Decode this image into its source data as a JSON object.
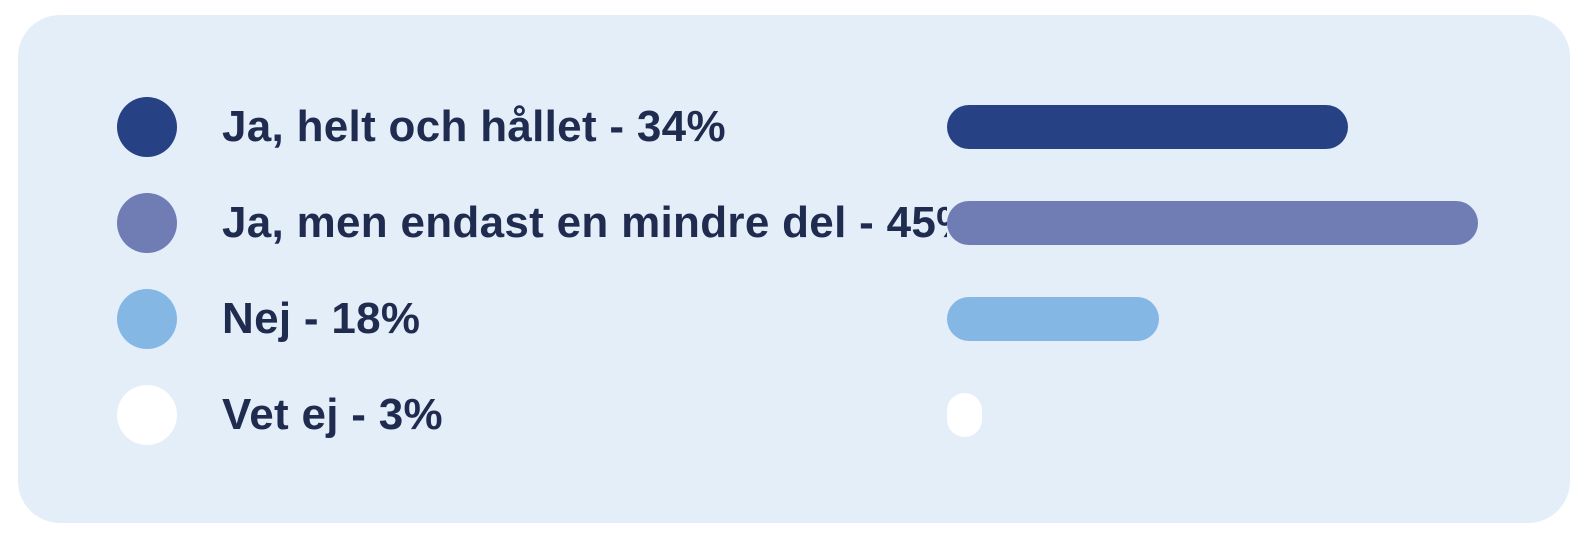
{
  "chart_data": {
    "type": "bar",
    "orientation": "horizontal",
    "title": "",
    "unit": "%",
    "grid": false,
    "axes_visible": false,
    "legend_position": "left",
    "max_value_for_scale": 45,
    "categories": [
      "Ja, helt och hållet",
      "Ja, men endast en mindre del",
      "Nej",
      "Vet ej"
    ],
    "values": [
      34,
      45,
      18,
      3
    ],
    "rows": [
      {
        "category": "Ja, helt och hållet",
        "value": 34,
        "label": "Ja, helt och hållet - 34%",
        "color": "#274185"
      },
      {
        "category": "Ja, men endast en mindre del",
        "value": 45,
        "label": "Ja, men endast en mindre del - 45%",
        "color": "#707CB4"
      },
      {
        "category": "Nej",
        "value": 18,
        "label": "Nej - 18%",
        "color": "#84B7E4"
      },
      {
        "category": "Vet ej",
        "value": 3,
        "label": "Vet ej - 3%",
        "color": "#FFFFFF"
      }
    ],
    "colors": {
      "card_background": "#E4EEF9",
      "page_background": "#FFFFFF",
      "text": "#1F2B4F"
    }
  }
}
